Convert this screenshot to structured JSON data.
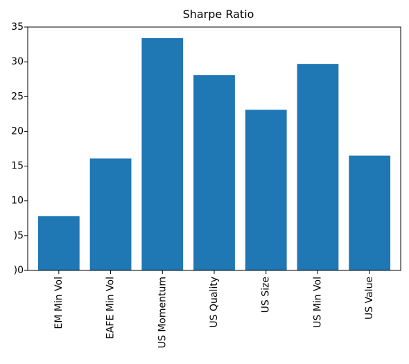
{
  "chart_data": {
    "type": "bar",
    "title": "Sharpe Ratio",
    "categories": [
      "EM Min Vol",
      "EAFE Min Vol",
      "US Momentum",
      "US Quality",
      "US Size",
      "US Min Vol",
      "US Value"
    ],
    "values": [
      0.078,
      0.161,
      0.334,
      0.281,
      0.231,
      0.297,
      0.165
    ],
    "ylim": [
      0.0,
      0.35
    ],
    "yticks": [
      0.0,
      0.05,
      0.1,
      0.15,
      0.2,
      0.25,
      0.3,
      0.35
    ],
    "ytick_labels": [
      ")0",
      ")5",
      "10",
      "15",
      "20",
      "25",
      "30",
      "35"
    ],
    "xlabel": "",
    "ylabel": "",
    "grid": false,
    "bar_color": "#1f77b4"
  }
}
